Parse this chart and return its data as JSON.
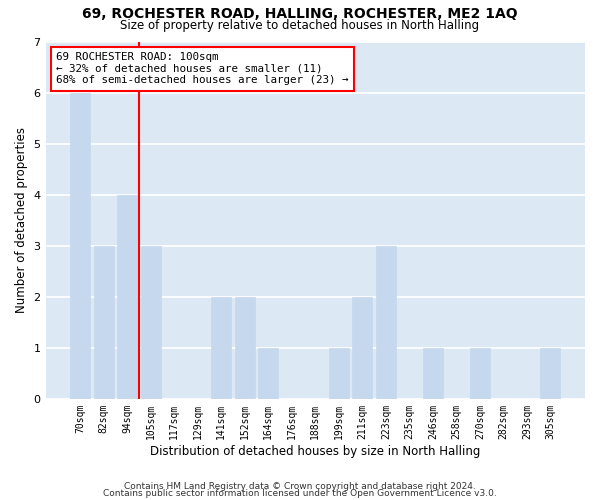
{
  "title1": "69, ROCHESTER ROAD, HALLING, ROCHESTER, ME2 1AQ",
  "title2": "Size of property relative to detached houses in North Halling",
  "xlabel": "Distribution of detached houses by size in North Halling",
  "ylabel": "Number of detached properties",
  "categories": [
    "70sqm",
    "82sqm",
    "94sqm",
    "105sqm",
    "117sqm",
    "129sqm",
    "141sqm",
    "152sqm",
    "164sqm",
    "176sqm",
    "188sqm",
    "199sqm",
    "211sqm",
    "223sqm",
    "235sqm",
    "246sqm",
    "258sqm",
    "270sqm",
    "282sqm",
    "293sqm",
    "305sqm"
  ],
  "values": [
    6,
    3,
    4,
    3,
    0,
    0,
    2,
    2,
    1,
    0,
    0,
    1,
    2,
    3,
    0,
    1,
    0,
    1,
    0,
    0,
    1
  ],
  "bar_color": "#c5d8ed",
  "bar_edge_color": "#c5d8ed",
  "red_line_x": 2.5,
  "annotation_line1": "69 ROCHESTER ROAD: 100sqm",
  "annotation_line2": "← 32% of detached houses are smaller (11)",
  "annotation_line3": "68% of semi-detached houses are larger (23) →",
  "ylim": [
    0,
    7
  ],
  "yticks": [
    0,
    1,
    2,
    3,
    4,
    5,
    6,
    7
  ],
  "plot_bg_color": "#dce9f5",
  "fig_bg_color": "#ffffff",
  "grid_color": "#ffffff",
  "footer1": "Contains HM Land Registry data © Crown copyright and database right 2024.",
  "footer2": "Contains public sector information licensed under the Open Government Licence v3.0."
}
